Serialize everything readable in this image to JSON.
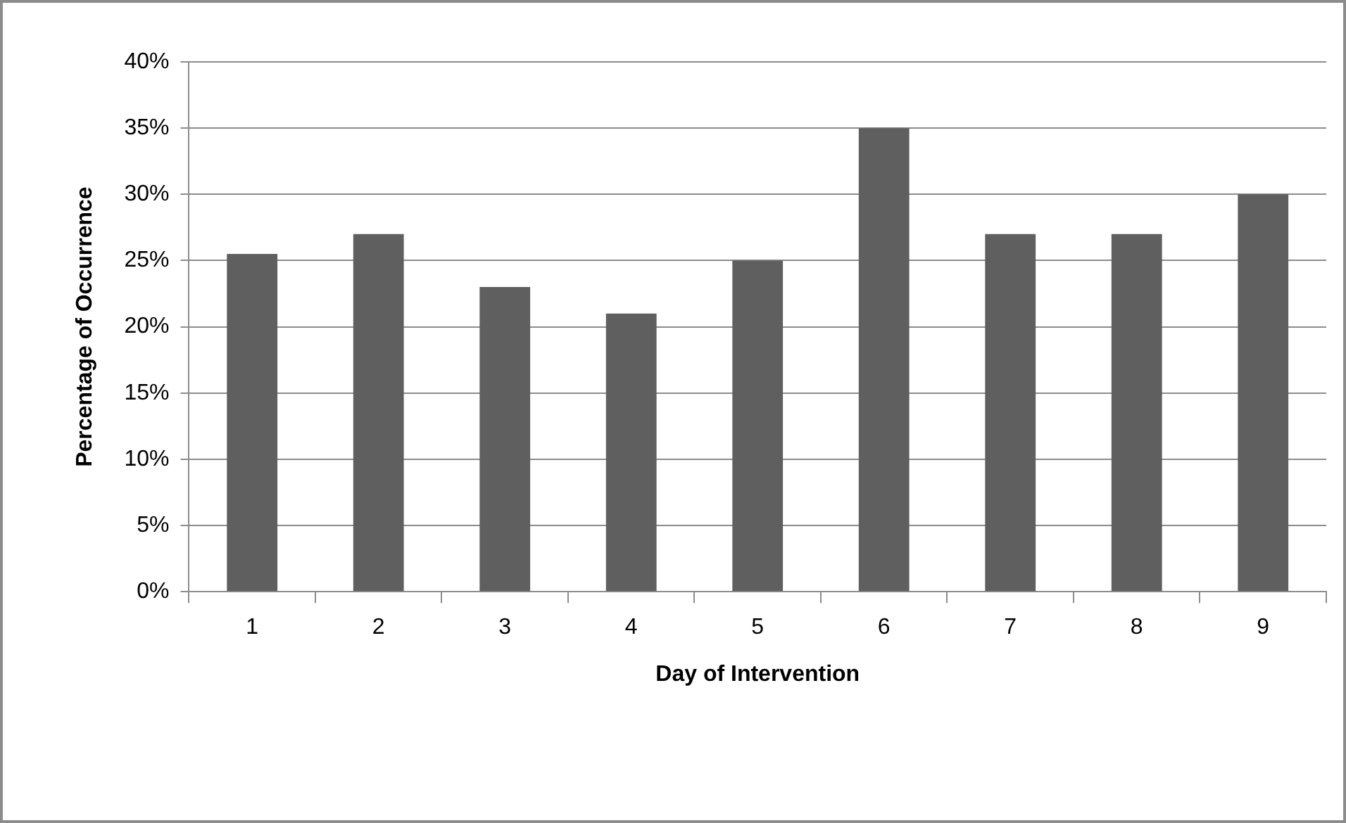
{
  "chart_data": {
    "type": "bar",
    "xlabel": "Day of Intervention",
    "ylabel": "Percentage of Occurrence",
    "categories": [
      "1",
      "2",
      "3",
      "4",
      "5",
      "6",
      "7",
      "8",
      "9"
    ],
    "values": [
      25.5,
      27,
      23,
      21,
      25,
      35,
      27,
      27,
      30
    ],
    "color": "#5f5f5f",
    "ylim": [
      0,
      40
    ],
    "yticks": [
      {
        "value": 0,
        "label": "0%"
      },
      {
        "value": 5,
        "label": "5%"
      },
      {
        "value": 10,
        "label": "10%"
      },
      {
        "value": 15,
        "label": "15%"
      },
      {
        "value": 20,
        "label": "20%"
      },
      {
        "value": 25,
        "label": "25%"
      },
      {
        "value": 30,
        "label": "30%"
      },
      {
        "value": 35,
        "label": "35%"
      },
      {
        "value": 40,
        "label": "40%"
      }
    ],
    "grid": "y",
    "legend": false
  }
}
